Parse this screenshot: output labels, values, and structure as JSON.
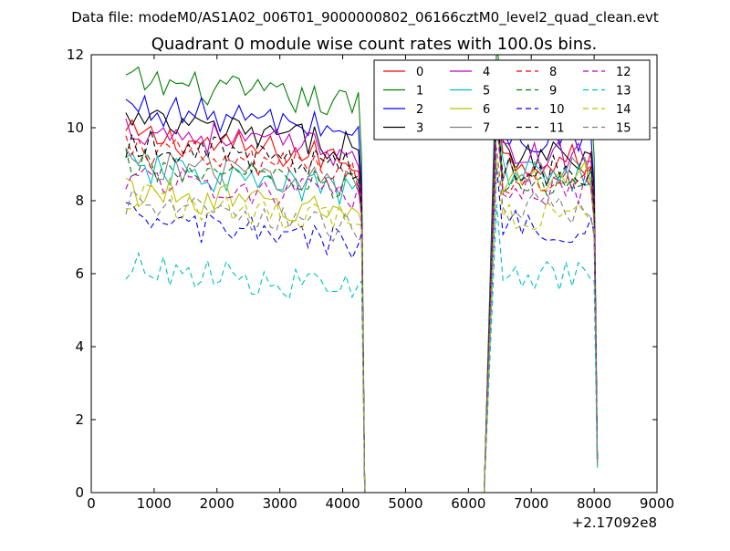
{
  "chart_data": {
    "type": "line",
    "suptitle": "Data file: modeM0/AS1A02_006T01_9000000802_06166cztM0_level2_quad_clean.evt",
    "title": "Quadrant 0 module wise count rates with 100.0s bins.",
    "xlabel": "",
    "ylabel": "",
    "x_offset_label": "+2.17092e8",
    "xlim": [
      0,
      9000
    ],
    "ylim": [
      0,
      12
    ],
    "xticks": [
      0,
      1000,
      2000,
      3000,
      4000,
      5000,
      6000,
      7000,
      8000,
      9000
    ],
    "yticks": [
      0,
      2,
      4,
      6,
      8,
      10,
      12
    ],
    "legend_location": "top-right",
    "legend_columns": 4,
    "segments": [
      {
        "x_start": 550,
        "x_end": 4250,
        "step": 100
      },
      {
        "x_start": 6450,
        "x_end": 8050,
        "step": 100
      }
    ],
    "drops": {
      "first_gap_zero": [
        4350,
        6250
      ],
      "last_x": 8050
    },
    "series": [
      {
        "name": "0",
        "color": "#ff0000",
        "dash": "solid",
        "level1": 9.1,
        "level2": 9.1,
        "end1": 7.8,
        "end2": 1.0
      },
      {
        "name": "1",
        "color": "#008000",
        "dash": "solid",
        "level1": 10.6,
        "level2": 10.6,
        "end1": 9.2,
        "end2": 1.0
      },
      {
        "name": "2",
        "color": "#0000ff",
        "dash": "solid",
        "level1": 9.9,
        "level2": 9.7,
        "end1": 8.3,
        "end2": 0.9
      },
      {
        "name": "3",
        "color": "#000000",
        "dash": "solid",
        "level1": 9.5,
        "level2": 9.3,
        "end1": 8.2,
        "end2": 0.9
      },
      {
        "name": "4",
        "color": "#bf00bf",
        "dash": "solid",
        "level1": 9.3,
        "level2": 9.2,
        "end1": 8.1,
        "end2": 0.9
      },
      {
        "name": "5",
        "color": "#00bfbf",
        "dash": "solid",
        "level1": 8.2,
        "level2": 8.7,
        "end1": 7.6,
        "end2": 0.8
      },
      {
        "name": "6",
        "color": "#bfbf00",
        "dash": "solid",
        "level1": 7.6,
        "level2": 8.6,
        "end1": 7.4,
        "end2": 0.8
      },
      {
        "name": "7",
        "color": "#808080",
        "dash": "solid",
        "level1": 8.4,
        "level2": 8.9,
        "end1": 7.7,
        "end2": 0.9
      },
      {
        "name": "8",
        "color": "#ff0000",
        "dash": "dashed",
        "level1": 8.7,
        "level2": 8.6,
        "end1": 7.8,
        "end2": 0.9
      },
      {
        "name": "9",
        "color": "#008000",
        "dash": "dashed",
        "level1": 8.3,
        "level2": 8.5,
        "end1": 7.6,
        "end2": 0.8
      },
      {
        "name": "10",
        "color": "#0000ff",
        "dash": "dashed",
        "level1": 6.8,
        "level2": 7.3,
        "end1": 7.1,
        "end2": 0.7
      },
      {
        "name": "11",
        "color": "#000000",
        "dash": "dashed",
        "level1": 8.9,
        "level2": 8.8,
        "end1": 7.9,
        "end2": 0.9
      },
      {
        "name": "12",
        "color": "#bf00bf",
        "dash": "dashed",
        "level1": 8.0,
        "level2": 8.3,
        "end1": 7.5,
        "end2": 0.8
      },
      {
        "name": "13",
        "color": "#00bfbf",
        "dash": "dashed",
        "level1": 5.5,
        "level2": 5.9,
        "end1": 5.8,
        "end2": 0.6
      },
      {
        "name": "14",
        "color": "#bfbf00",
        "dash": "dashed",
        "level1": 7.4,
        "level2": 7.6,
        "end1": 7.3,
        "end2": 0.7
      },
      {
        "name": "15",
        "color": "#808080",
        "dash": "dashed",
        "level1": 7.2,
        "level2": 7.8,
        "end1": 7.0,
        "end2": 0.8
      }
    ]
  }
}
